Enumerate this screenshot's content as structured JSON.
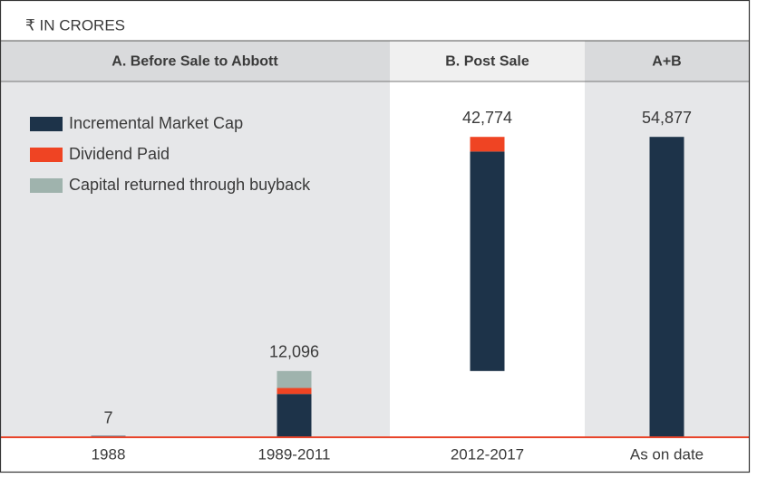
{
  "chart_data": {
    "type": "waterfall",
    "unit_label": "₹ IN CRORES",
    "sections": [
      {
        "label": "A. Before Sale to Abbott",
        "span": 2
      },
      {
        "label": "B. Post Sale",
        "span": 1
      },
      {
        "label": "A+B",
        "span": 1
      }
    ],
    "categories": [
      "1988",
      "1989-2011",
      "2012-2017",
      "As on date"
    ],
    "is_total": [
      false,
      false,
      false,
      true
    ],
    "series": [
      {
        "name": "Incremental Market Cap",
        "color": "#1d3349",
        "values": [
          7,
          7900,
          40100,
          54877
        ]
      },
      {
        "name": "Dividend Paid",
        "color": "#ef4423",
        "values": [
          null,
          1100,
          2674,
          null
        ]
      },
      {
        "name": "Capital returned through buyback",
        "color": "#9fb3ad",
        "values": [
          null,
          3096,
          null,
          null
        ]
      }
    ],
    "totals": {
      "values": [
        7,
        12096,
        42774,
        54877
      ],
      "value_labels": [
        "7",
        "12,096",
        "42,774",
        "54,877"
      ]
    },
    "ylim": [
      0,
      65000
    ],
    "legend": "top-left"
  }
}
